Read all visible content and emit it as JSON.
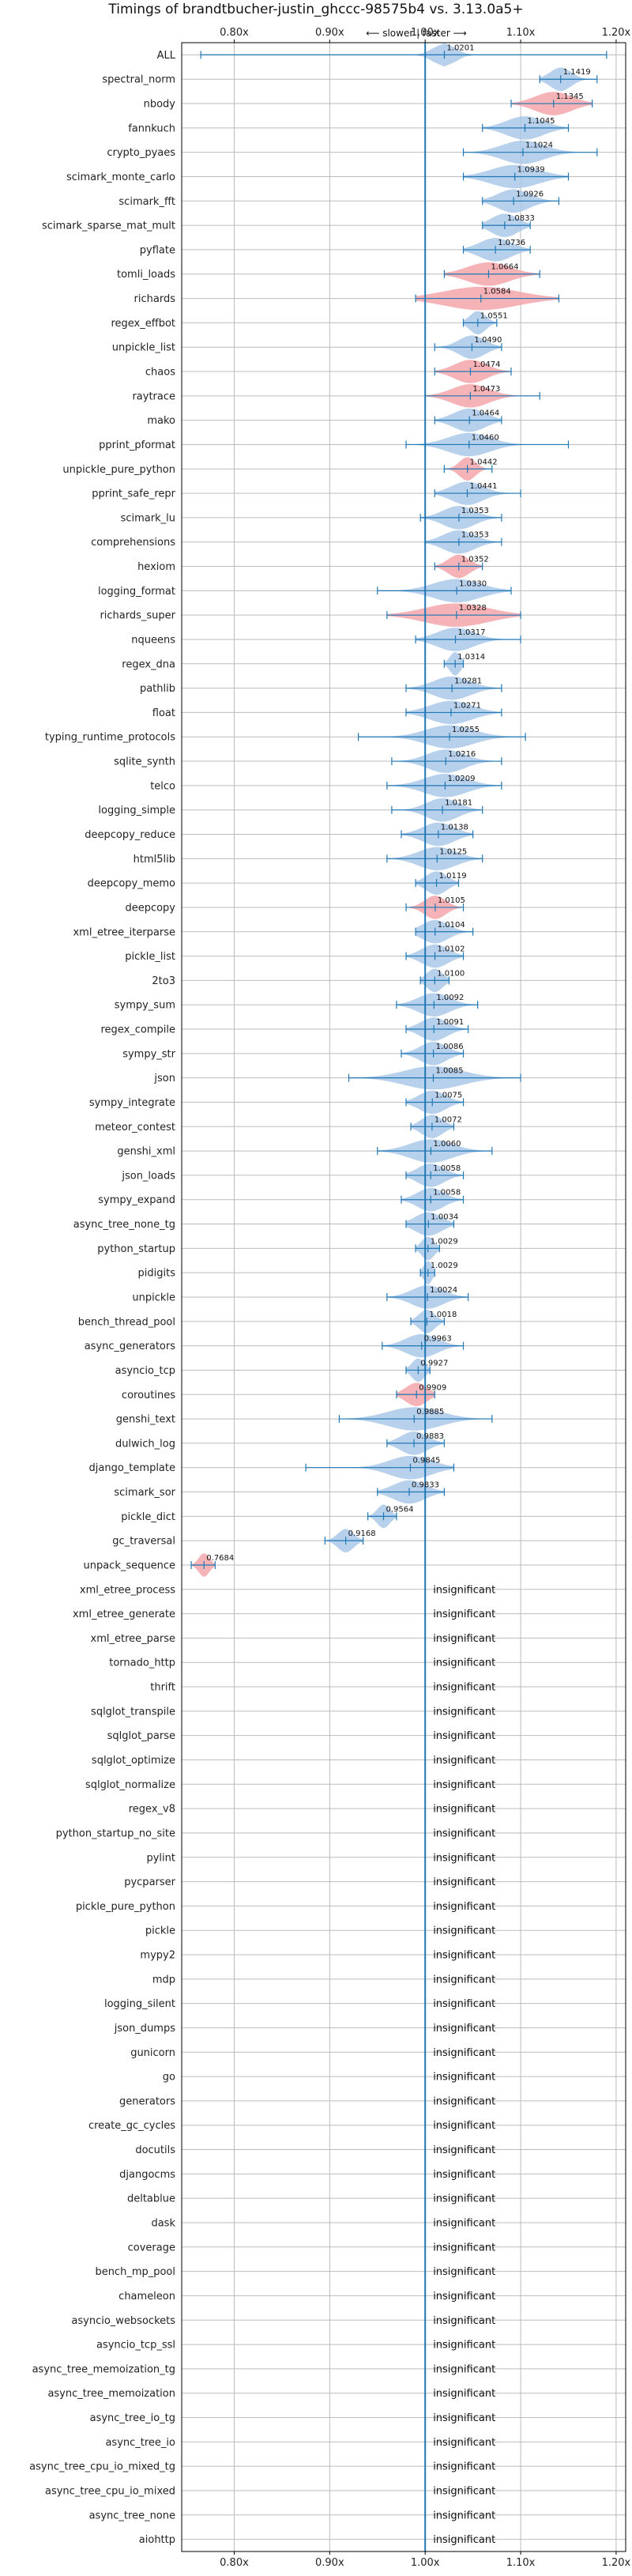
{
  "chart_data": {
    "type": "violin",
    "title": "Timings of brandtbucher-justin_ghccc-98575b4 vs. 3.13.0a5+",
    "direction_note": "⟵ slower | faster ⟶",
    "xlim": [
      0.745,
      1.21
    ],
    "reference_x": 1.0,
    "x_ticks": [
      {
        "value": 0.8,
        "label": "0.80x"
      },
      {
        "value": 0.9,
        "label": "0.90x"
      },
      {
        "value": 1.0,
        "label": "1.00x"
      },
      {
        "value": 1.1,
        "label": "1.10x"
      },
      {
        "value": 1.2,
        "label": "1.20x"
      }
    ],
    "insignificant_text": "insignificant",
    "colors": {
      "blue_fill": "#aac8e8",
      "red_fill": "#f4a6aa",
      "line": "#1f77b4",
      "grid": "#bbbbbb"
    },
    "benchmarks": [
      {
        "name": "ALL",
        "mean": 1.0201,
        "label": "1.0201",
        "lo": 0.765,
        "hi": 1.19,
        "color": "blue",
        "w": 0.02
      },
      {
        "name": "spectral_norm",
        "mean": 1.1419,
        "label": "1.1419",
        "lo": 1.12,
        "hi": 1.18,
        "color": "blue",
        "w": 0.02
      },
      {
        "name": "nbody",
        "mean": 1.1345,
        "label": "1.1345",
        "lo": 1.09,
        "hi": 1.175,
        "color": "red",
        "w": 0.035
      },
      {
        "name": "fannkuch",
        "mean": 1.1045,
        "label": "1.1045",
        "lo": 1.06,
        "hi": 1.15,
        "color": "blue",
        "w": 0.035
      },
      {
        "name": "crypto_pyaes",
        "mean": 1.1024,
        "label": "1.1024",
        "lo": 1.04,
        "hi": 1.18,
        "color": "blue",
        "w": 0.04
      },
      {
        "name": "scimark_monte_carlo",
        "mean": 1.0939,
        "label": "1.0939",
        "lo": 1.04,
        "hi": 1.15,
        "color": "blue",
        "w": 0.045
      },
      {
        "name": "scimark_fft",
        "mean": 1.0926,
        "label": "1.0926",
        "lo": 1.06,
        "hi": 1.14,
        "color": "blue",
        "w": 0.03
      },
      {
        "name": "scimark_sparse_mat_mult",
        "mean": 1.0833,
        "label": "1.0833",
        "lo": 1.06,
        "hi": 1.11,
        "color": "blue",
        "w": 0.025
      },
      {
        "name": "pyflate",
        "mean": 1.0736,
        "label": "1.0736",
        "lo": 1.04,
        "hi": 1.11,
        "color": "blue",
        "w": 0.03
      },
      {
        "name": "tomli_loads",
        "mean": 1.0664,
        "label": "1.0664",
        "lo": 1.02,
        "hi": 1.12,
        "color": "red",
        "w": 0.04
      },
      {
        "name": "richards",
        "mean": 1.0584,
        "label": "1.0584",
        "lo": 0.99,
        "hi": 1.14,
        "color": "red",
        "w": 0.07
      },
      {
        "name": "regex_effbot",
        "mean": 1.0551,
        "label": "1.0551",
        "lo": 1.04,
        "hi": 1.075,
        "color": "blue",
        "w": 0.015
      },
      {
        "name": "unpickle_list",
        "mean": 1.049,
        "label": "1.0490",
        "lo": 1.01,
        "hi": 1.08,
        "color": "blue",
        "w": 0.025
      },
      {
        "name": "chaos",
        "mean": 1.0474,
        "label": "1.0474",
        "lo": 1.01,
        "hi": 1.09,
        "color": "red",
        "w": 0.03
      },
      {
        "name": "raytrace",
        "mean": 1.0473,
        "label": "1.0473",
        "lo": 1.0,
        "hi": 1.12,
        "color": "red",
        "w": 0.035
      },
      {
        "name": "mako",
        "mean": 1.0464,
        "label": "1.0464",
        "lo": 1.01,
        "hi": 1.08,
        "color": "blue",
        "w": 0.03
      },
      {
        "name": "pprint_pformat",
        "mean": 1.046,
        "label": "1.0460",
        "lo": 0.98,
        "hi": 1.15,
        "color": "blue",
        "w": 0.04
      },
      {
        "name": "unpickle_pure_python",
        "mean": 1.0442,
        "label": "1.0442",
        "lo": 1.02,
        "hi": 1.07,
        "color": "red",
        "w": 0.015
      },
      {
        "name": "pprint_safe_repr",
        "mean": 1.0441,
        "label": "1.0441",
        "lo": 1.01,
        "hi": 1.1,
        "color": "blue",
        "w": 0.03
      },
      {
        "name": "scimark_lu",
        "mean": 1.0353,
        "label": "1.0353",
        "lo": 0.995,
        "hi": 1.08,
        "color": "blue",
        "w": 0.03
      },
      {
        "name": "comprehensions",
        "mean": 1.0353,
        "label": "1.0353",
        "lo": 1.0,
        "hi": 1.08,
        "color": "blue",
        "w": 0.03
      },
      {
        "name": "hexiom",
        "mean": 1.0352,
        "label": "1.0352",
        "lo": 1.01,
        "hi": 1.06,
        "color": "red",
        "w": 0.02
      },
      {
        "name": "logging_format",
        "mean": 1.033,
        "label": "1.0330",
        "lo": 0.95,
        "hi": 1.09,
        "color": "blue",
        "w": 0.045
      },
      {
        "name": "richards_super",
        "mean": 1.0328,
        "label": "1.0328",
        "lo": 0.96,
        "hi": 1.1,
        "color": "red",
        "w": 0.06
      },
      {
        "name": "nqueens",
        "mean": 1.0317,
        "label": "1.0317",
        "lo": 0.99,
        "hi": 1.1,
        "color": "blue",
        "w": 0.035
      },
      {
        "name": "regex_dna",
        "mean": 1.0314,
        "label": "1.0314",
        "lo": 1.02,
        "hi": 1.04,
        "color": "blue",
        "w": 0.01
      },
      {
        "name": "pathlib",
        "mean": 1.0281,
        "label": "1.0281",
        "lo": 0.98,
        "hi": 1.08,
        "color": "blue",
        "w": 0.035
      },
      {
        "name": "float",
        "mean": 1.0271,
        "label": "1.0271",
        "lo": 0.98,
        "hi": 1.08,
        "color": "blue",
        "w": 0.04
      },
      {
        "name": "typing_runtime_protocols",
        "mean": 1.0255,
        "label": "1.0255",
        "lo": 0.93,
        "hi": 1.105,
        "color": "blue",
        "w": 0.045
      },
      {
        "name": "sqlite_synth",
        "mean": 1.0216,
        "label": "1.0216",
        "lo": 0.965,
        "hi": 1.08,
        "color": "blue",
        "w": 0.035
      },
      {
        "name": "telco",
        "mean": 1.0209,
        "label": "1.0209",
        "lo": 0.96,
        "hi": 1.08,
        "color": "blue",
        "w": 0.04
      },
      {
        "name": "logging_simple",
        "mean": 1.0181,
        "label": "1.0181",
        "lo": 0.965,
        "hi": 1.06,
        "color": "blue",
        "w": 0.03
      },
      {
        "name": "deepcopy_reduce",
        "mean": 1.0138,
        "label": "1.0138",
        "lo": 0.975,
        "hi": 1.05,
        "color": "blue",
        "w": 0.03
      },
      {
        "name": "html5lib",
        "mean": 1.0125,
        "label": "1.0125",
        "lo": 0.96,
        "hi": 1.06,
        "color": "blue",
        "w": 0.035
      },
      {
        "name": "deepcopy_memo",
        "mean": 1.0119,
        "label": "1.0119",
        "lo": 0.99,
        "hi": 1.035,
        "color": "blue",
        "w": 0.02
      },
      {
        "name": "deepcopy",
        "mean": 1.0105,
        "label": "1.0105",
        "lo": 0.98,
        "hi": 1.04,
        "color": "red",
        "w": 0.02
      },
      {
        "name": "xml_etree_iterparse",
        "mean": 1.0104,
        "label": "1.0104",
        "lo": 0.99,
        "hi": 1.05,
        "color": "blue",
        "w": 0.025
      },
      {
        "name": "pickle_list",
        "mean": 1.0102,
        "label": "1.0102",
        "lo": 0.98,
        "hi": 1.04,
        "color": "blue",
        "w": 0.025
      },
      {
        "name": "2to3",
        "mean": 1.01,
        "label": "1.0100",
        "lo": 0.995,
        "hi": 1.025,
        "color": "blue",
        "w": 0.015
      },
      {
        "name": "sympy_sum",
        "mean": 1.0092,
        "label": "1.0092",
        "lo": 0.97,
        "hi": 1.055,
        "color": "blue",
        "w": 0.03
      },
      {
        "name": "regex_compile",
        "mean": 1.0091,
        "label": "1.0091",
        "lo": 0.98,
        "hi": 1.045,
        "color": "blue",
        "w": 0.025
      },
      {
        "name": "sympy_str",
        "mean": 1.0086,
        "label": "1.0086",
        "lo": 0.975,
        "hi": 1.04,
        "color": "blue",
        "w": 0.025
      },
      {
        "name": "json",
        "mean": 1.0085,
        "label": "1.0085",
        "lo": 0.92,
        "hi": 1.1,
        "color": "blue",
        "w": 0.055
      },
      {
        "name": "sympy_integrate",
        "mean": 1.0075,
        "label": "1.0075",
        "lo": 0.98,
        "hi": 1.04,
        "color": "blue",
        "w": 0.025
      },
      {
        "name": "meteor_contest",
        "mean": 1.0072,
        "label": "1.0072",
        "lo": 0.985,
        "hi": 1.03,
        "color": "blue",
        "w": 0.02
      },
      {
        "name": "genshi_xml",
        "mean": 1.006,
        "label": "1.0060",
        "lo": 0.95,
        "hi": 1.07,
        "color": "blue",
        "w": 0.04
      },
      {
        "name": "json_loads",
        "mean": 1.0058,
        "label": "1.0058",
        "lo": 0.98,
        "hi": 1.04,
        "color": "blue",
        "w": 0.025
      },
      {
        "name": "sympy_expand",
        "mean": 1.0058,
        "label": "1.0058",
        "lo": 0.975,
        "hi": 1.04,
        "color": "blue",
        "w": 0.025
      },
      {
        "name": "async_tree_none_tg",
        "mean": 1.0034,
        "label": "1.0034",
        "lo": 0.98,
        "hi": 1.03,
        "color": "blue",
        "w": 0.025
      },
      {
        "name": "python_startup",
        "mean": 1.0029,
        "label": "1.0029",
        "lo": 0.99,
        "hi": 1.015,
        "color": "blue",
        "w": 0.012
      },
      {
        "name": "pidigits",
        "mean": 1.0029,
        "label": "1.0029",
        "lo": 0.995,
        "hi": 1.01,
        "color": "blue",
        "w": 0.008
      },
      {
        "name": "unpickle",
        "mean": 1.0024,
        "label": "1.0024",
        "lo": 0.96,
        "hi": 1.045,
        "color": "blue",
        "w": 0.03
      },
      {
        "name": "bench_thread_pool",
        "mean": 1.0018,
        "label": "1.0018",
        "lo": 0.985,
        "hi": 1.02,
        "color": "blue",
        "w": 0.015
      },
      {
        "name": "async_generators",
        "mean": 0.9963,
        "label": "0.9963",
        "lo": 0.955,
        "hi": 1.04,
        "color": "blue",
        "w": 0.03
      },
      {
        "name": "asyncio_tcp",
        "mean": 0.9927,
        "label": "0.9927",
        "lo": 0.98,
        "hi": 1.005,
        "color": "blue",
        "w": 0.012
      },
      {
        "name": "coroutines",
        "mean": 0.9909,
        "label": "0.9909",
        "lo": 0.97,
        "hi": 1.01,
        "color": "red",
        "w": 0.02
      },
      {
        "name": "genshi_text",
        "mean": 0.9885,
        "label": "0.9885",
        "lo": 0.91,
        "hi": 1.07,
        "color": "blue",
        "w": 0.05
      },
      {
        "name": "dulwich_log",
        "mean": 0.9883,
        "label": "0.9883",
        "lo": 0.96,
        "hi": 1.02,
        "color": "blue",
        "w": 0.025
      },
      {
        "name": "django_template",
        "mean": 0.9845,
        "label": "0.9845",
        "lo": 0.875,
        "hi": 1.03,
        "color": "blue",
        "w": 0.04
      },
      {
        "name": "scimark_sor",
        "mean": 0.9833,
        "label": "0.9833",
        "lo": 0.95,
        "hi": 1.02,
        "color": "blue",
        "w": 0.03
      },
      {
        "name": "pickle_dict",
        "mean": 0.9564,
        "label": "0.9564",
        "lo": 0.94,
        "hi": 0.97,
        "color": "blue",
        "w": 0.012
      },
      {
        "name": "gc_traversal",
        "mean": 0.9168,
        "label": "0.9168",
        "lo": 0.895,
        "hi": 0.935,
        "color": "blue",
        "w": 0.015
      },
      {
        "name": "unpack_sequence",
        "mean": 0.7684,
        "label": "0.7684",
        "lo": 0.755,
        "hi": 0.78,
        "color": "red",
        "w": 0.01
      },
      {
        "name": "xml_etree_process",
        "insignificant": true
      },
      {
        "name": "xml_etree_generate",
        "insignificant": true
      },
      {
        "name": "xml_etree_parse",
        "insignificant": true
      },
      {
        "name": "tornado_http",
        "insignificant": true
      },
      {
        "name": "thrift",
        "insignificant": true
      },
      {
        "name": "sqlglot_transpile",
        "insignificant": true
      },
      {
        "name": "sqlglot_parse",
        "insignificant": true
      },
      {
        "name": "sqlglot_optimize",
        "insignificant": true
      },
      {
        "name": "sqlglot_normalize",
        "insignificant": true
      },
      {
        "name": "regex_v8",
        "insignificant": true
      },
      {
        "name": "python_startup_no_site",
        "insignificant": true
      },
      {
        "name": "pylint",
        "insignificant": true
      },
      {
        "name": "pycparser",
        "insignificant": true
      },
      {
        "name": "pickle_pure_python",
        "insignificant": true
      },
      {
        "name": "pickle",
        "insignificant": true
      },
      {
        "name": "mypy2",
        "insignificant": true
      },
      {
        "name": "mdp",
        "insignificant": true
      },
      {
        "name": "logging_silent",
        "insignificant": true
      },
      {
        "name": "json_dumps",
        "insignificant": true
      },
      {
        "name": "gunicorn",
        "insignificant": true
      },
      {
        "name": "go",
        "insignificant": true
      },
      {
        "name": "generators",
        "insignificant": true
      },
      {
        "name": "create_gc_cycles",
        "insignificant": true
      },
      {
        "name": "docutils",
        "insignificant": true
      },
      {
        "name": "djangocms",
        "insignificant": true
      },
      {
        "name": "deltablue",
        "insignificant": true
      },
      {
        "name": "dask",
        "insignificant": true
      },
      {
        "name": "coverage",
        "insignificant": true
      },
      {
        "name": "bench_mp_pool",
        "insignificant": true
      },
      {
        "name": "chameleon",
        "insignificant": true
      },
      {
        "name": "asyncio_websockets",
        "insignificant": true
      },
      {
        "name": "asyncio_tcp_ssl",
        "insignificant": true
      },
      {
        "name": "async_tree_memoization_tg",
        "insignificant": true
      },
      {
        "name": "async_tree_memoization",
        "insignificant": true
      },
      {
        "name": "async_tree_io_tg",
        "insignificant": true
      },
      {
        "name": "async_tree_io",
        "insignificant": true
      },
      {
        "name": "async_tree_cpu_io_mixed_tg",
        "insignificant": true
      },
      {
        "name": "async_tree_cpu_io_mixed",
        "insignificant": true
      },
      {
        "name": "async_tree_none",
        "insignificant": true
      },
      {
        "name": "aiohttp",
        "insignificant": true
      }
    ]
  }
}
